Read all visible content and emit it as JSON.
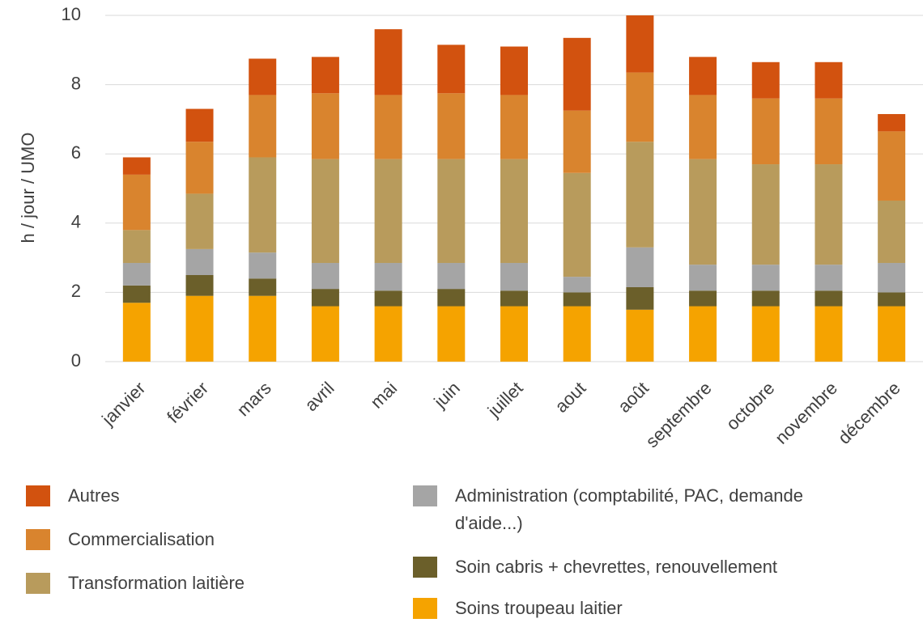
{
  "chart_data": {
    "type": "stacked-bar",
    "y_label": "h / jour / UMO",
    "categories": [
      "janvier",
      "février",
      "mars",
      "avril",
      "mai",
      "juin",
      "juillet",
      "aout",
      "août",
      "septembre",
      "octobre",
      "novembre",
      "décembre"
    ],
    "series": [
      {
        "name": "Soins troupeau laitier",
        "color": "#f5a300",
        "values": [
          1.7,
          1.9,
          1.9,
          1.6,
          1.6,
          1.6,
          1.6,
          1.6,
          1.5,
          1.6,
          1.6,
          1.6,
          1.6
        ]
      },
      {
        "name": "Soin cabris + chevrettes, renouvellement",
        "color": "#6b5f2a",
        "values": [
          0.5,
          0.6,
          0.5,
          0.5,
          0.45,
          0.5,
          0.45,
          0.4,
          0.65,
          0.45,
          0.45,
          0.45,
          0.4
        ]
      },
      {
        "name": "Administration (comptabilité, PAC, demande d'aide...)",
        "color": "#a5a5a5",
        "values": [
          0.65,
          0.75,
          0.75,
          0.75,
          0.8,
          0.75,
          0.8,
          0.45,
          1.15,
          0.75,
          0.75,
          0.75,
          0.85
        ]
      },
      {
        "name": "Transformation laitière",
        "color": "#b89b5c",
        "values": [
          0.95,
          1.6,
          2.75,
          3.0,
          3.0,
          3.0,
          3.0,
          3.0,
          3.05,
          3.05,
          2.9,
          2.9,
          1.8
        ]
      },
      {
        "name": "Commercialisation",
        "color": "#d9842e",
        "values": [
          1.6,
          1.5,
          1.8,
          1.9,
          1.85,
          1.9,
          1.85,
          1.8,
          2.0,
          1.85,
          1.9,
          1.9,
          2.0
        ]
      },
      {
        "name": "Autres",
        "color": "#d2520f",
        "values": [
          0.5,
          0.95,
          1.05,
          1.05,
          1.9,
          1.4,
          1.4,
          2.1,
          1.65,
          1.1,
          1.05,
          1.05,
          0.5
        ]
      }
    ],
    "ylim": [
      0,
      10
    ],
    "yticks": [
      0,
      2,
      4,
      6,
      8,
      10
    ],
    "grid": true
  }
}
